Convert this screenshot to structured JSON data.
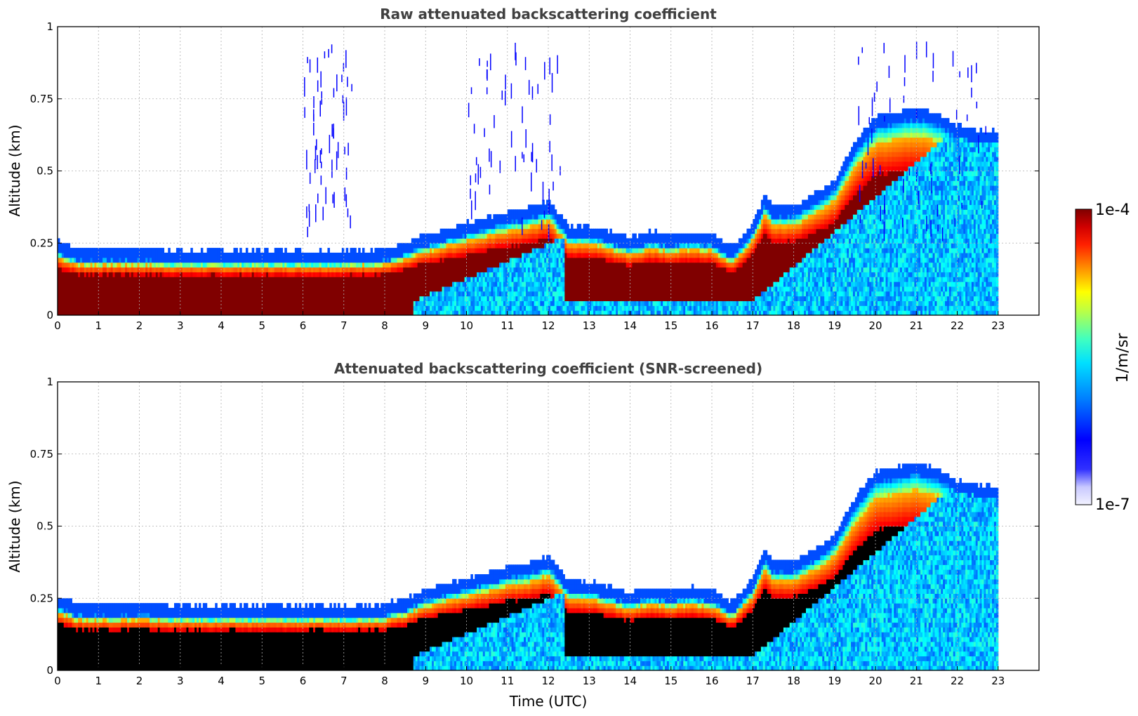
{
  "chart_data": [
    {
      "type": "heatmap",
      "title": "Raw attenuated backscattering coefficient",
      "xlabel": "",
      "ylabel": "Altitude (km)",
      "xlim": [
        0,
        24
      ],
      "ylim": [
        0,
        1
      ],
      "x_ticks": [
        "0",
        "1",
        "2",
        "3",
        "4",
        "5",
        "6",
        "7",
        "8",
        "9",
        "10",
        "11",
        "12",
        "13",
        "14",
        "15",
        "16",
        "17",
        "18",
        "19",
        "20",
        "21",
        "22",
        "23"
      ],
      "y_ticks": [
        "0",
        "0.25",
        "0.5",
        "0.75",
        "1"
      ],
      "grid": true,
      "data_time_range_utc": [
        0,
        23
      ],
      "layer_top_km": [
        [
          0,
          0.22
        ],
        [
          0.5,
          0.19
        ],
        [
          1,
          0.19
        ],
        [
          2,
          0.19
        ],
        [
          3,
          0.185
        ],
        [
          4,
          0.185
        ],
        [
          5,
          0.185
        ],
        [
          6,
          0.185
        ],
        [
          7,
          0.185
        ],
        [
          8,
          0.19
        ],
        [
          8.5,
          0.21
        ],
        [
          9,
          0.24
        ],
        [
          9.5,
          0.26
        ],
        [
          10,
          0.28
        ],
        [
          10.5,
          0.3
        ],
        [
          11,
          0.32
        ],
        [
          11.5,
          0.33
        ],
        [
          12,
          0.36
        ],
        [
          12.5,
          0.27
        ],
        [
          13,
          0.27
        ],
        [
          13.5,
          0.25
        ],
        [
          14,
          0.23
        ],
        [
          14.5,
          0.25
        ],
        [
          15,
          0.24
        ],
        [
          15.5,
          0.25
        ],
        [
          16,
          0.24
        ],
        [
          16.5,
          0.2
        ],
        [
          17,
          0.28
        ],
        [
          17.3,
          0.38
        ],
        [
          17.5,
          0.34
        ],
        [
          18,
          0.34
        ],
        [
          18.5,
          0.38
        ],
        [
          19,
          0.43
        ],
        [
          19.5,
          0.56
        ],
        [
          20,
          0.65
        ],
        [
          21,
          0.68
        ],
        [
          21.5,
          0.66
        ],
        [
          22,
          0.62
        ],
        [
          22.5,
          0.6
        ],
        [
          23,
          0.6
        ]
      ],
      "noise_columns_utc": [
        [
          6,
          7.2
        ],
        [
          10,
          12.3
        ],
        [
          19.5,
          22.7
        ]
      ],
      "colorscale": "jet",
      "max_value_color": "#7f0000"
    },
    {
      "type": "heatmap",
      "title": "Attenuated backscattering coefficient (SNR-screened)",
      "xlabel": "Time (UTC)",
      "ylabel": "Altitude (km)",
      "xlim": [
        0,
        24
      ],
      "ylim": [
        0,
        1
      ],
      "x_ticks": [
        "0",
        "1",
        "2",
        "3",
        "4",
        "5",
        "6",
        "7",
        "8",
        "9",
        "10",
        "11",
        "12",
        "13",
        "14",
        "15",
        "16",
        "17",
        "18",
        "19",
        "20",
        "21",
        "22",
        "23"
      ],
      "y_ticks": [
        "0",
        "0.25",
        "0.5",
        "0.75",
        "1"
      ],
      "grid": true,
      "data_time_range_utc": [
        0,
        23
      ],
      "screened_core_color": "#000000",
      "colorscale": "jet"
    }
  ],
  "colorbar": {
    "label": "1/m/sr",
    "max_label": "1e-4",
    "min_label": "1e-7",
    "scale": "log",
    "range": [
      1e-07,
      0.0001
    ]
  }
}
